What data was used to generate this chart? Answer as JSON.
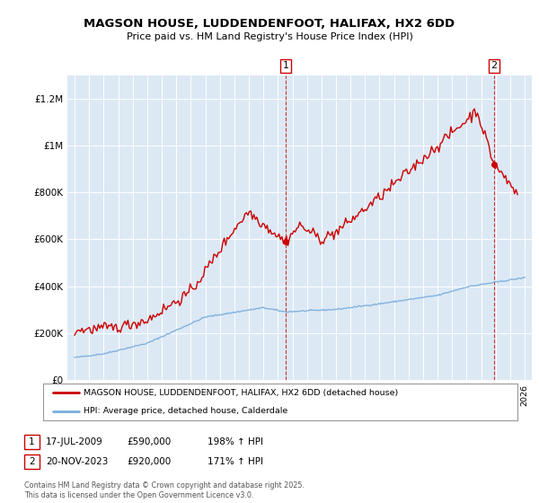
{
  "title": "MAGSON HOUSE, LUDDENDENFOOT, HALIFAX, HX2 6DD",
  "subtitle": "Price paid vs. HM Land Registry's House Price Index (HPI)",
  "legend_line1": "MAGSON HOUSE, LUDDENDENFOOT, HALIFAX, HX2 6DD (detached house)",
  "legend_line2": "HPI: Average price, detached house, Calderdale",
  "annotation1_date": "17-JUL-2009",
  "annotation1_value": "£590,000",
  "annotation1_hpi": "198% ↑ HPI",
  "annotation2_date": "20-NOV-2023",
  "annotation2_value": "£920,000",
  "annotation2_hpi": "171% ↑ HPI",
  "footer": "Contains HM Land Registry data © Crown copyright and database right 2025.\nThis data is licensed under the Open Government Licence v3.0.",
  "house_color": "#cc0000",
  "hpi_color": "#7aaddc",
  "annotation_color": "#cc0000",
  "background_color": "#ffffff",
  "plot_bg_color": "#dce9f5",
  "ylim": [
    0,
    1300000
  ],
  "yticks": [
    0,
    200000,
    400000,
    600000,
    800000,
    1000000,
    1200000
  ],
  "ytick_labels": [
    "£0",
    "£200K",
    "£400K",
    "£600K",
    "£800K",
    "£1M",
    "£1.2M"
  ],
  "xmin": 1994.5,
  "xmax": 2026.5
}
